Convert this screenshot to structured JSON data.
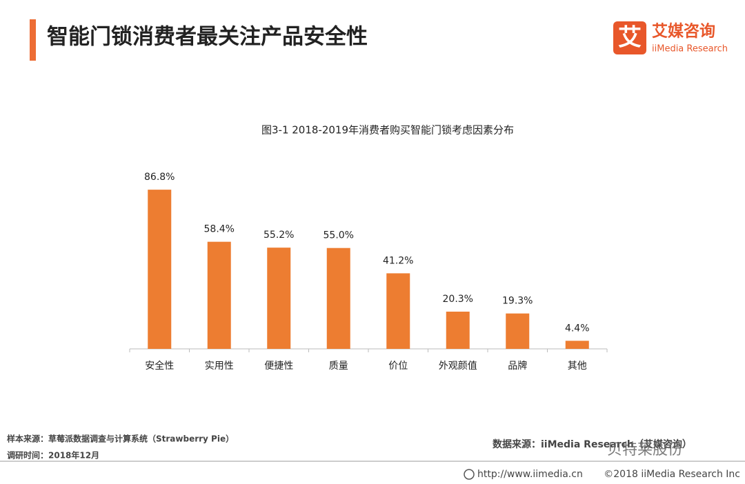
{
  "header": {
    "title": "智能门锁消费者最关注产品安全性"
  },
  "logo": {
    "icon": "艾",
    "name": "艾媒咨询",
    "subtitle": "iiMedia Research"
  },
  "chart_data": {
    "type": "bar",
    "title": "图3-1 2018-2019年消费者购买智能门锁考虑因素分布",
    "categories": [
      "安全性",
      "实用性",
      "便捷性",
      "质量",
      "价位",
      "外观颜值",
      "品牌",
      "其他"
    ],
    "values": [
      86.8,
      58.4,
      55.2,
      55.0,
      41.2,
      20.3,
      19.3,
      4.4
    ],
    "value_labels": [
      "86.8%",
      "58.4%",
      "55.2%",
      "55.0%",
      "41.2%",
      "20.3%",
      "19.3%",
      "4.4%"
    ],
    "color": "#ed7d31"
  },
  "footer": {
    "sample_source": "样本来源：草莓派数据调查与计算系统（Strawberry Pie）",
    "survey_time": "调研时间：2018年12月",
    "data_source": "数据来源：iiMedia Research（艾媒咨询）",
    "url": "http://www.iimedia.cn",
    "copyright": "©2018  iiMedia Research  Inc",
    "watermark": "贝特莱股份"
  }
}
